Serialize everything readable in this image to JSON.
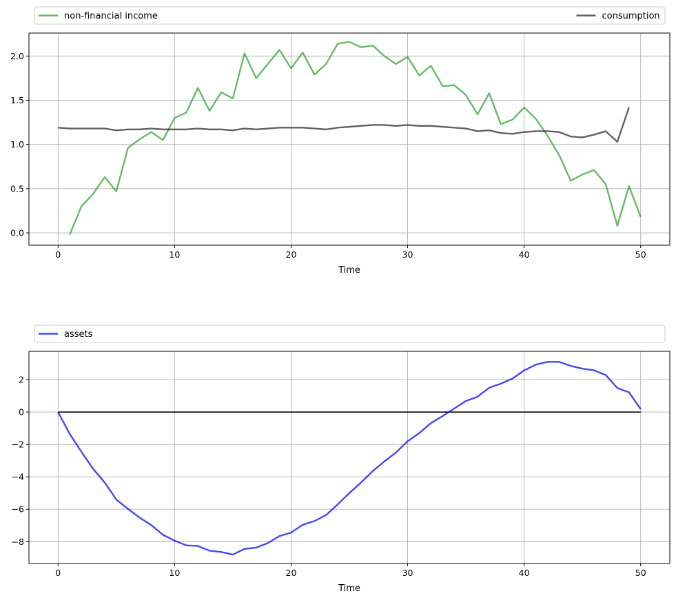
{
  "chart_data": [
    {
      "type": "line",
      "xlabel": "Time",
      "ylabel": "",
      "xlim": [
        -2.5,
        52.5
      ],
      "ylim": [
        -0.14,
        2.26
      ],
      "xticks": [
        0,
        10,
        20,
        30,
        40,
        50
      ],
      "yticks": [
        0.0,
        0.5,
        1.0,
        1.5,
        2.0
      ],
      "xtick_labels": [
        "0",
        "10",
        "20",
        "30",
        "40",
        "50"
      ],
      "ytick_labels": [
        "0.0",
        "0.5",
        "1.0",
        "1.5",
        "2.0"
      ],
      "grid": true,
      "legend_placement": "above plot, expanded across width",
      "series": [
        {
          "name": "non-financial income",
          "color": "#2ca02c",
          "x": [
            1,
            2,
            3,
            4,
            5,
            6,
            7,
            8,
            9,
            10,
            11,
            12,
            13,
            14,
            15,
            16,
            17,
            18,
            19,
            20,
            21,
            22,
            23,
            24,
            25,
            26,
            27,
            28,
            29,
            30,
            31,
            32,
            33,
            34,
            35,
            36,
            37,
            38,
            39,
            40,
            41,
            42,
            43,
            44,
            45,
            46,
            47,
            48,
            49,
            50
          ],
          "values": [
            -0.02,
            0.3,
            0.44,
            0.63,
            0.47,
            0.96,
            1.06,
            1.14,
            1.05,
            1.3,
            1.36,
            1.64,
            1.38,
            1.59,
            1.52,
            2.03,
            1.75,
            1.91,
            2.07,
            1.86,
            2.04,
            1.79,
            1.91,
            2.14,
            2.16,
            2.1,
            2.12,
            2.0,
            1.91,
            1.99,
            1.78,
            1.89,
            1.66,
            1.67,
            1.56,
            1.34,
            1.58,
            1.23,
            1.28,
            1.42,
            1.29,
            1.1,
            0.88,
            0.59,
            0.66,
            0.71,
            0.55,
            0.08,
            0.53,
            0.18
          ]
        },
        {
          "name": "consumption",
          "color": "#222222",
          "x": [
            0,
            1,
            2,
            3,
            4,
            5,
            6,
            7,
            8,
            9,
            10,
            11,
            12,
            13,
            14,
            15,
            16,
            17,
            18,
            19,
            20,
            21,
            22,
            23,
            24,
            25,
            26,
            27,
            28,
            29,
            30,
            31,
            32,
            33,
            34,
            35,
            36,
            37,
            38,
            39,
            40,
            41,
            42,
            43,
            44,
            45,
            46,
            47,
            48,
            49
          ],
          "values": [
            1.19,
            1.18,
            1.18,
            1.18,
            1.18,
            1.16,
            1.17,
            1.17,
            1.18,
            1.17,
            1.17,
            1.17,
            1.18,
            1.17,
            1.17,
            1.16,
            1.18,
            1.17,
            1.18,
            1.19,
            1.19,
            1.19,
            1.18,
            1.17,
            1.19,
            1.2,
            1.21,
            1.22,
            1.22,
            1.21,
            1.22,
            1.21,
            1.21,
            1.2,
            1.19,
            1.18,
            1.15,
            1.16,
            1.13,
            1.12,
            1.14,
            1.15,
            1.15,
            1.14,
            1.09,
            1.08,
            1.11,
            1.15,
            1.03,
            1.42
          ]
        }
      ]
    },
    {
      "type": "line",
      "xlabel": "Time",
      "ylabel": "",
      "xlim": [
        -2.5,
        52.5
      ],
      "ylim": [
        -9.35,
        3.75
      ],
      "xticks": [
        0,
        10,
        20,
        30,
        40,
        50
      ],
      "yticks": [
        -8,
        -6,
        -4,
        -2,
        0,
        2
      ],
      "xtick_labels": [
        "0",
        "10",
        "20",
        "30",
        "40",
        "50"
      ],
      "ytick_labels": [
        "−8",
        "−6",
        "−4",
        "−2",
        "0",
        "2"
      ],
      "grid": true,
      "legend_placement": "above plot, expanded across width",
      "zero_line": {
        "y": 0,
        "x": [
          0,
          50
        ],
        "color": "#000000"
      },
      "series": [
        {
          "name": "assets",
          "color": "#0000ee",
          "x": [
            0,
            1,
            2,
            3,
            4,
            5,
            6,
            7,
            8,
            9,
            10,
            11,
            12,
            13,
            14,
            15,
            16,
            17,
            18,
            19,
            20,
            21,
            22,
            23,
            24,
            25,
            26,
            27,
            28,
            29,
            30,
            31,
            32,
            33,
            34,
            35,
            36,
            37,
            38,
            39,
            40,
            41,
            42,
            43,
            44,
            45,
            46,
            47,
            48,
            49,
            50
          ],
          "values": [
            0.0,
            -1.35,
            -2.45,
            -3.5,
            -4.35,
            -5.4,
            -5.98,
            -6.52,
            -6.98,
            -7.58,
            -7.94,
            -8.23,
            -8.27,
            -8.56,
            -8.64,
            -8.8,
            -8.45,
            -8.37,
            -8.09,
            -7.66,
            -7.44,
            -6.96,
            -6.73,
            -6.36,
            -5.7,
            -5.0,
            -4.35,
            -3.65,
            -3.05,
            -2.5,
            -1.8,
            -1.3,
            -0.68,
            -0.25,
            0.22,
            0.68,
            0.95,
            1.5,
            1.75,
            2.07,
            2.57,
            2.93,
            3.1,
            3.1,
            2.85,
            2.68,
            2.58,
            2.29,
            1.48,
            1.22,
            0.18
          ]
        }
      ]
    }
  ]
}
